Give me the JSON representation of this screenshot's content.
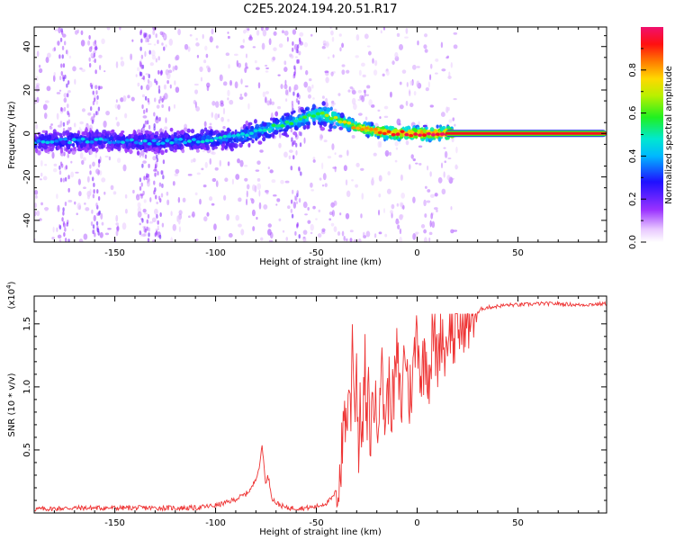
{
  "figure": {
    "title": "C2E5.2024.194.20.51.R17"
  },
  "chart_data": [
    {
      "type": "heatmap",
      "panel": "spectrogram",
      "xlabel": "Height of straight line (km)",
      "ylabel": "Frequency (Hz)",
      "xlim": [
        -190,
        94
      ],
      "ylim": [
        -50,
        49
      ],
      "x_ticks": [
        -150,
        -100,
        -50,
        0,
        50
      ],
      "y_ticks": [
        -40,
        -20,
        0,
        20,
        40
      ],
      "colorbar": {
        "label": "Normalized spectral amplitude",
        "range": [
          0,
          1
        ],
        "ticks": [
          "0.0",
          "0.2",
          "0.4",
          "0.6",
          "0.8"
        ],
        "colormap": "rainbow (white-purple-blue-cyan-green-yellow-orange-red-magenta)"
      },
      "ridge_frequency": {
        "x": [
          -190,
          -160,
          -130,
          -110,
          -90,
          -75,
          -60,
          -50,
          -44,
          -38,
          -30,
          -20,
          -10,
          0,
          15,
          30,
          94
        ],
        "y": [
          -4,
          -3,
          -4,
          -3,
          -2,
          2,
          6,
          9,
          8,
          6,
          3,
          1,
          0,
          0,
          0,
          0,
          0
        ]
      },
      "ridge_amplitude": {
        "x": [
          -190,
          -150,
          -120,
          -100,
          -80,
          -60,
          -50,
          -44,
          -38,
          -30,
          -20,
          -10,
          0,
          15,
          30,
          94
        ],
        "y": [
          0.3,
          0.3,
          0.32,
          0.35,
          0.4,
          0.45,
          0.5,
          0.55,
          0.62,
          0.7,
          0.78,
          0.82,
          0.85,
          0.88,
          0.9,
          0.9
        ]
      },
      "grid": false
    },
    {
      "type": "line",
      "panel": "snr",
      "xlabel": "Height of straight line (km)",
      "ylabel": "SNR (10 * v/v)",
      "y_multiplier_label": "(x10",
      "y_multiplier_exp": "4",
      "xlim": [
        -190,
        94
      ],
      "ylim": [
        0,
        1.72
      ],
      "x_ticks": [
        -150,
        -100,
        -50,
        0,
        50
      ],
      "y_ticks": [
        "0.5",
        "1.0",
        "1.5"
      ],
      "series": [
        {
          "color": "#ee3333",
          "x": [
            -190,
            -170,
            -150,
            -130,
            -110,
            -100,
            -95,
            -90,
            -85,
            -82,
            -80,
            -78,
            -77,
            -76,
            -75,
            -74,
            -72,
            -70,
            -65,
            -60,
            -55,
            -50,
            -45,
            -42,
            -40,
            -38,
            -37,
            -36,
            -35,
            -34,
            -33,
            -32,
            -31,
            -30,
            -29,
            -28,
            -27,
            -26,
            -25,
            -24,
            -23,
            -22,
            -20,
            -18,
            -16,
            -14,
            -12,
            -10,
            -8,
            -6,
            -4,
            -2,
            0,
            2,
            4,
            6,
            8,
            10,
            12,
            14,
            16,
            18,
            20,
            22,
            24,
            26,
            28,
            30,
            32,
            35,
            40,
            45,
            50,
            60,
            70,
            80,
            94
          ],
          "values": [
            0.03,
            0.04,
            0.04,
            0.04,
            0.04,
            0.06,
            0.08,
            0.11,
            0.15,
            0.2,
            0.28,
            0.38,
            0.55,
            0.38,
            0.22,
            0.3,
            0.12,
            0.08,
            0.04,
            0.04,
            0.04,
            0.05,
            0.08,
            0.12,
            0.18,
            0.35,
            0.55,
            0.9,
            0.6,
            1.1,
            0.7,
            1.56,
            0.8,
            1.2,
            0.45,
            0.9,
            0.5,
            1.25,
            0.6,
            0.95,
            0.55,
            1.0,
            0.7,
            1.2,
            0.75,
            1.0,
            0.85,
            1.25,
            0.8,
            1.35,
            0.9,
            1.1,
            1.5,
            1.05,
            1.3,
            1.1,
            1.45,
            1.2,
            1.5,
            1.25,
            1.58,
            1.35,
            1.5,
            1.45,
            1.6,
            1.52,
            1.6,
            1.58,
            1.62,
            1.63,
            1.64,
            1.65,
            1.65,
            1.66,
            1.66,
            1.65,
            1.66
          ]
        }
      ],
      "grid": false
    }
  ]
}
